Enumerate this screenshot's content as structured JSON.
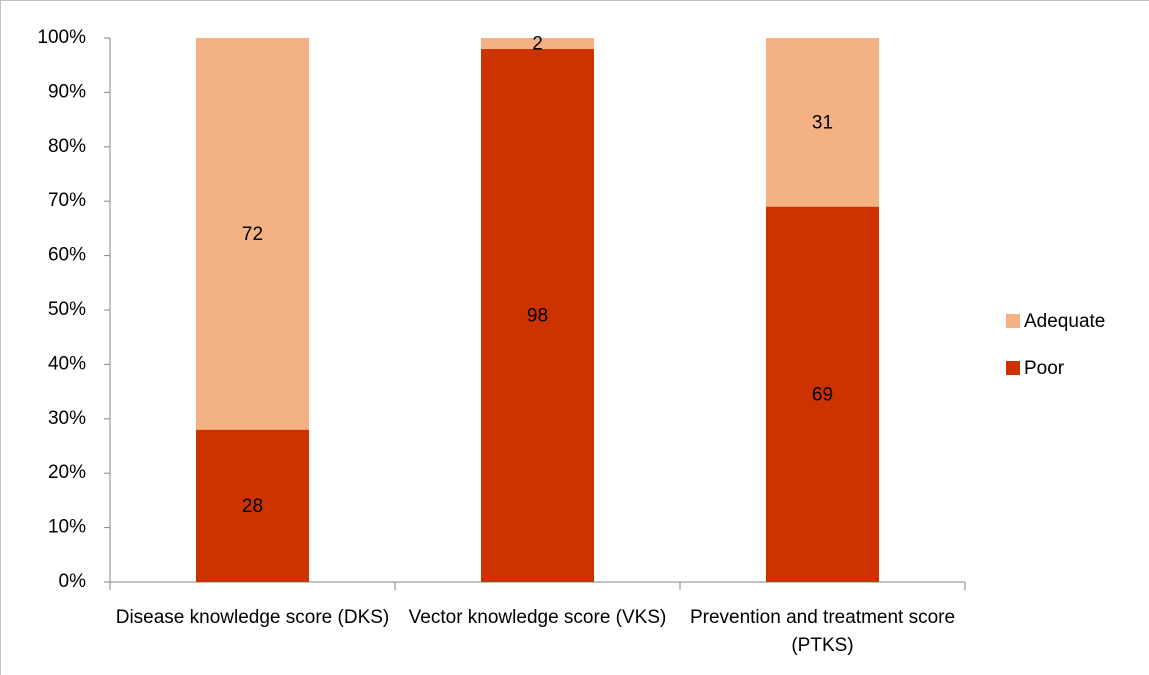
{
  "chart_data": {
    "type": "stacked_bar",
    "categories": [
      "Disease knowledge score (DKS)",
      "Vector knowledge score (VKS)",
      "Prevention and treatment score (PTKS)"
    ],
    "series": [
      {
        "name": "Poor",
        "color": "#cc3300",
        "values": [
          28,
          98,
          69
        ]
      },
      {
        "name": "Adequate",
        "color": "#f4b183",
        "values": [
          72,
          2,
          31
        ]
      }
    ],
    "ylim": [
      0,
      100
    ],
    "yticks": [
      {
        "value": 0,
        "label": "0%"
      },
      {
        "value": 10,
        "label": "10%"
      },
      {
        "value": 20,
        "label": "20%"
      },
      {
        "value": 30,
        "label": "30%"
      },
      {
        "value": 40,
        "label": "40%"
      },
      {
        "value": 50,
        "label": "50%"
      },
      {
        "value": 60,
        "label": "60%"
      },
      {
        "value": 70,
        "label": "70%"
      },
      {
        "value": 80,
        "label": "80%"
      },
      {
        "value": 90,
        "label": "90%"
      },
      {
        "value": 100,
        "label": "100%"
      }
    ],
    "legend": "right"
  }
}
